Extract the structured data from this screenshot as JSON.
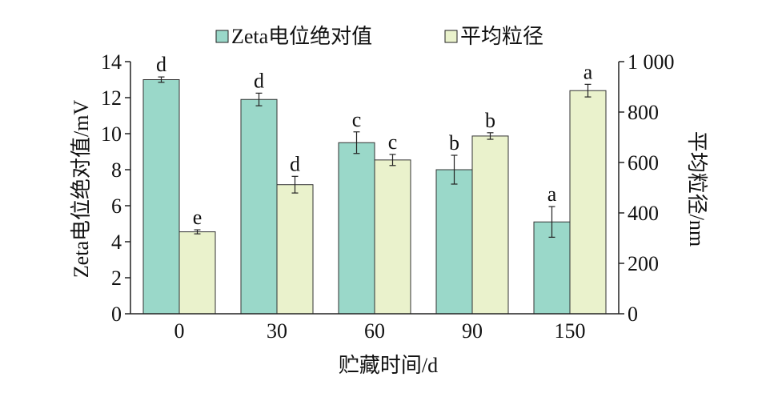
{
  "chart_data": {
    "type": "bar",
    "categories": [
      "0",
      "30",
      "60",
      "90",
      "150"
    ],
    "xlabel": "贮藏时间/d",
    "ylabel_left": "Zeta电位绝对值/mV",
    "ylabel_right": "平均粒径/nm",
    "ylim_left": [
      0,
      14
    ],
    "ylim_right": [
      0,
      1000
    ],
    "yticks_left": [
      "0",
      "2",
      "4",
      "6",
      "8",
      "10",
      "12",
      "14"
    ],
    "yticks_right": [
      "0",
      "200",
      "400",
      "600",
      "800",
      "1 000"
    ],
    "legend_position": "top",
    "series": [
      {
        "name": "Zeta电位绝对值",
        "axis": "left",
        "color": "#9ad8c9",
        "values": [
          13.0,
          11.9,
          9.5,
          8.0,
          5.1
        ],
        "errors": [
          0.15,
          0.35,
          0.6,
          0.8,
          0.85
        ],
        "letters": [
          "d",
          "d",
          "c",
          "b",
          "a"
        ]
      },
      {
        "name": "平均粒径",
        "axis": "right",
        "color": "#eaf2cc",
        "values": [
          325,
          512,
          610,
          705,
          885
        ],
        "errors": [
          8,
          33,
          22,
          13,
          25
        ],
        "letters": [
          "e",
          "d",
          "c",
          "b",
          "a"
        ]
      }
    ]
  }
}
